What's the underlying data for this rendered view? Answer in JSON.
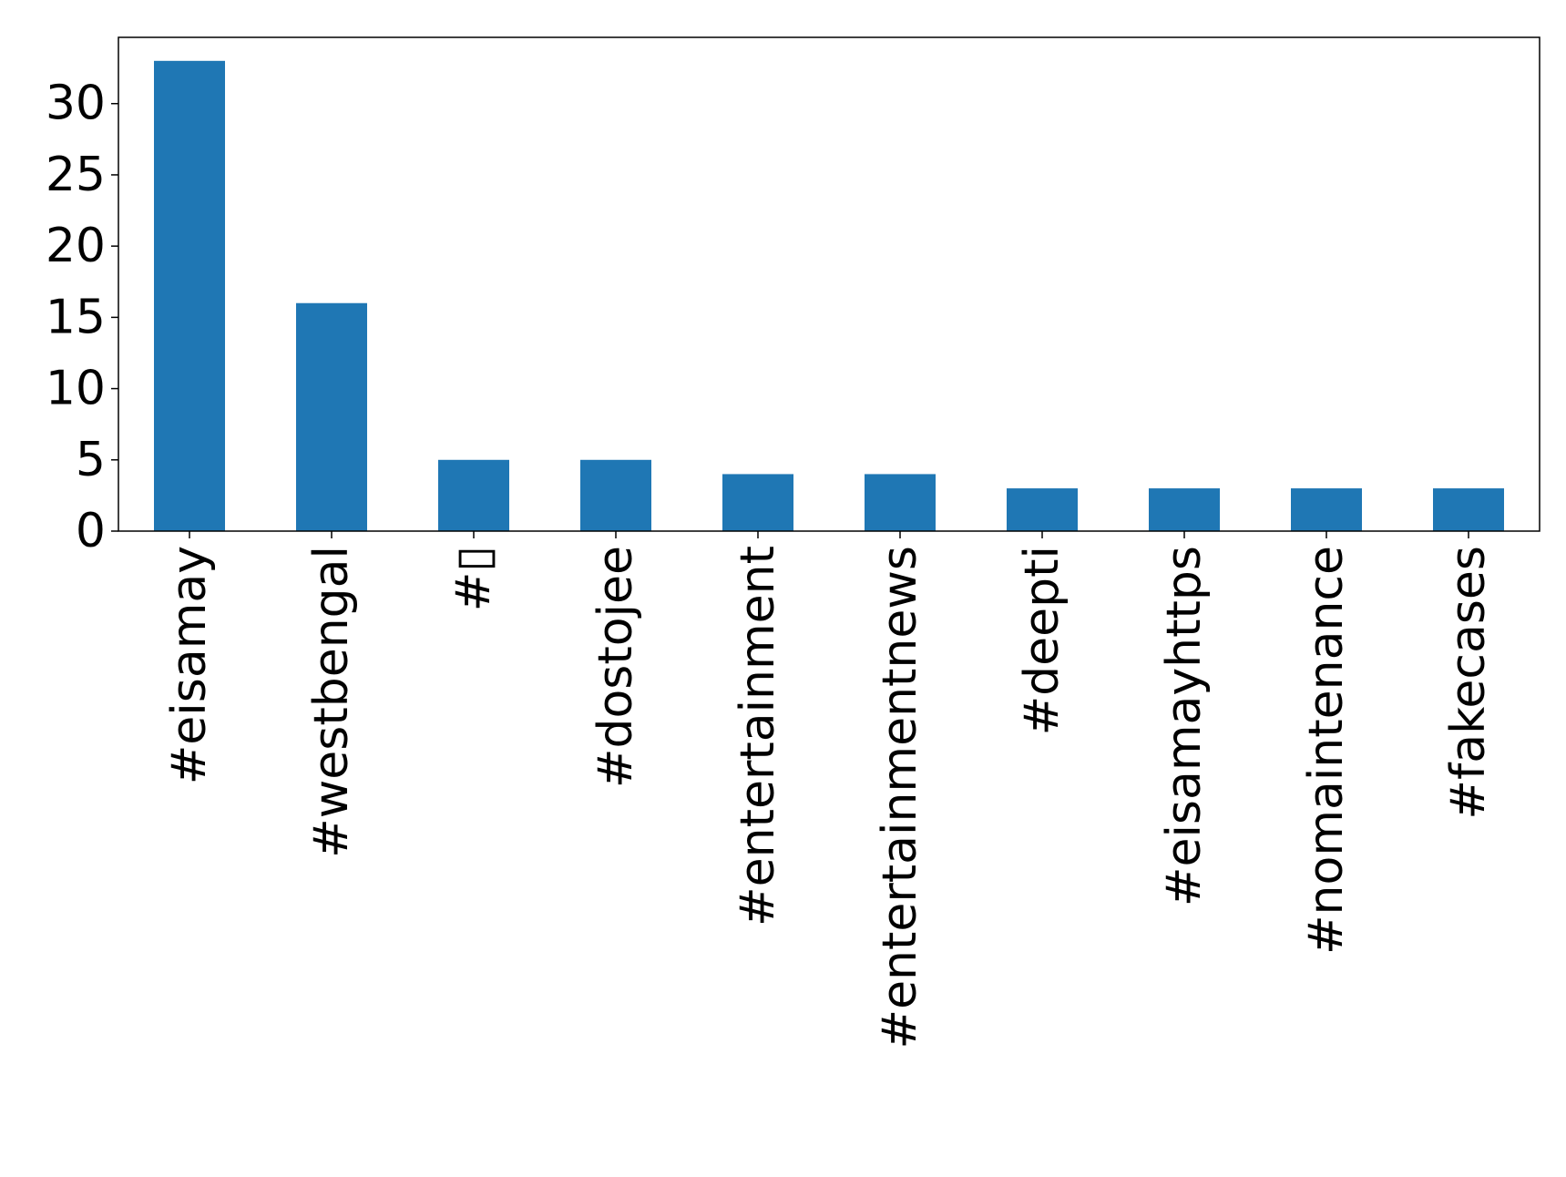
{
  "chart_data": {
    "type": "bar",
    "categories": [
      "#eisamay",
      "#westbengal",
      "#▯",
      "#dostojee",
      "#entertainment",
      "#entertainmentnews",
      "#deepti",
      "#eisamayhttps",
      "#nomaintenance",
      "#fakecases"
    ],
    "values": [
      33,
      16,
      5,
      5,
      4,
      4,
      3,
      3,
      3,
      3
    ],
    "title": "",
    "xlabel": "",
    "ylabel": "",
    "ylim": [
      0,
      34.65
    ],
    "yticks": [
      0,
      5,
      10,
      15,
      20,
      25,
      30
    ],
    "bar_color": "#1f77b4",
    "grid": false,
    "legend": "none"
  }
}
